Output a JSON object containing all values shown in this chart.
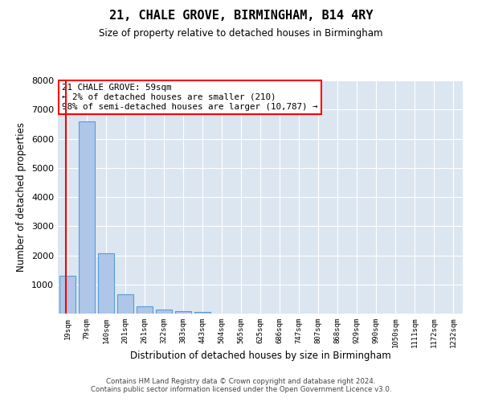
{
  "title": "21, CHALE GROVE, BIRMINGHAM, B14 4RY",
  "subtitle": "Size of property relative to detached houses in Birmingham",
  "xlabel": "Distribution of detached houses by size in Birmingham",
  "ylabel": "Number of detached properties",
  "categories": [
    "19sqm",
    "79sqm",
    "140sqm",
    "201sqm",
    "261sqm",
    "322sqm",
    "383sqm",
    "443sqm",
    "504sqm",
    "565sqm",
    "625sqm",
    "686sqm",
    "747sqm",
    "807sqm",
    "868sqm",
    "929sqm",
    "990sqm",
    "1050sqm",
    "1111sqm",
    "1172sqm",
    "1232sqm"
  ],
  "values": [
    1300,
    6600,
    2080,
    650,
    240,
    130,
    90,
    60,
    10,
    10,
    0,
    0,
    0,
    0,
    0,
    0,
    0,
    0,
    0,
    0,
    0
  ],
  "bar_color": "#aec6e8",
  "bar_edge_color": "#5b9bd5",
  "bg_color": "#dce6f1",
  "grid_color": "#ffffff",
  "annotation_line1": "21 CHALE GROVE: 59sqm",
  "annotation_line2": "← 2% of detached houses are smaller (210)",
  "annotation_line3": "98% of semi-detached houses are larger (10,787) →",
  "red_line_x": -0.1,
  "ylim": [
    0,
    8000
  ],
  "yticks": [
    0,
    1000,
    2000,
    3000,
    4000,
    5000,
    6000,
    7000,
    8000
  ],
  "footer_line1": "Contains HM Land Registry data © Crown copyright and database right 2024.",
  "footer_line2": "Contains public sector information licensed under the Open Government Licence v3.0."
}
